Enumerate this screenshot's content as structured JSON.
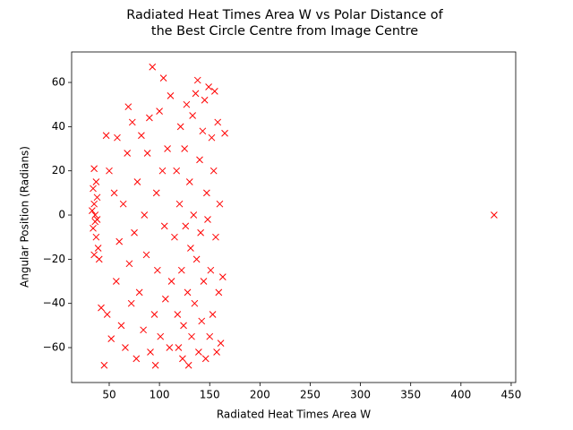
{
  "chart_data": {
    "type": "scatter",
    "title": [
      "Radiated Heat Times Area W vs Polar Distance of",
      "the Best Circle Centre from Image Centre"
    ],
    "x_label": "Radiated Heat Times Area W",
    "y_label": "Angular Position (Radians)",
    "color": "#ff0000",
    "xlim": [
      12.6,
      454.5
    ],
    "ylim": [
      -75.8,
      73.8
    ],
    "xticks": [
      50,
      100,
      150,
      200,
      250,
      300,
      350,
      400,
      450
    ],
    "yticks": [
      {
        "value": -60,
        "label": "−60"
      },
      {
        "value": -40,
        "label": "−40"
      },
      {
        "value": -20,
        "label": "−20"
      },
      0,
      20,
      40,
      60
    ],
    "x": [
      35,
      36,
      34,
      37,
      35,
      38,
      34,
      36,
      39,
      35,
      37,
      40,
      33,
      38,
      42,
      45,
      47,
      48,
      50,
      52,
      55,
      57,
      58,
      60,
      62,
      64,
      66,
      68,
      69,
      70,
      72,
      73,
      75,
      77,
      78,
      80,
      82,
      84,
      85,
      87,
      88,
      90,
      91,
      93,
      95,
      96,
      97,
      98,
      100,
      101,
      103,
      104,
      105,
      106,
      108,
      110,
      111,
      112,
      115,
      117,
      118,
      119,
      120,
      121,
      122,
      123,
      124,
      125,
      126,
      127,
      128,
      129,
      130,
      131,
      132,
      133,
      134,
      135,
      136,
      137,
      138,
      139,
      140,
      141,
      142,
      143,
      144,
      145,
      146,
      147,
      148,
      149,
      150,
      151,
      152,
      153,
      154,
      155,
      156,
      157,
      158,
      159,
      160,
      161,
      163,
      165,
      433
    ],
    "values": [
      5,
      -3,
      12,
      -10,
      -18,
      8,
      -6,
      0,
      -15,
      21,
      15,
      -20,
      2,
      -2,
      -42,
      -68,
      36,
      -45,
      20,
      -56,
      10,
      -30,
      35,
      -12,
      -50,
      5,
      -60,
      28,
      49,
      -22,
      -40,
      42,
      -8,
      -65,
      15,
      -35,
      36,
      -52,
      0,
      -18,
      28,
      44,
      -62,
      67,
      -45,
      -68,
      10,
      -25,
      47,
      -55,
      20,
      62,
      -5,
      -38,
      30,
      -60,
      54,
      -30,
      -10,
      20,
      -45,
      -60,
      5,
      40,
      -25,
      -65,
      -50,
      30,
      -5,
      50,
      -35,
      -68,
      15,
      -15,
      -55,
      45,
      0,
      -40,
      55,
      -20,
      61,
      -62,
      25,
      -8,
      -48,
      38,
      -30,
      52,
      -65,
      10,
      -2,
      58,
      -55,
      -25,
      35,
      -45,
      20,
      56,
      -10,
      -62,
      42,
      -35,
      5,
      -58,
      -28,
      37,
      0
    ]
  }
}
